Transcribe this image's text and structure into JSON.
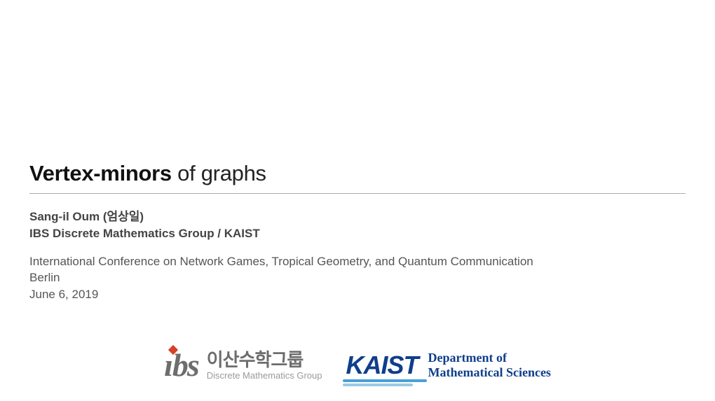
{
  "title": {
    "bold": "Vertex-minors",
    "rest": " of graphs"
  },
  "author": "Sang-il Oum (엄상일)",
  "affiliation": "IBS Discrete Mathematics Group / KAIST",
  "conference": "International Conference on Network Games, Tropical Geometry, and Quantum Communication",
  "location": "Berlin",
  "date": "June 6, 2019",
  "logos": {
    "ibs": {
      "mark_i": "ı",
      "mark_bs": "bs",
      "kr": "이산수학그룹",
      "en": "Discrete Mathematics Group",
      "mark_color": "#6d6d6d",
      "dot_color": "#d64227",
      "sub_color": "#9a9a9a"
    },
    "kaist": {
      "mark": "KAIST",
      "dept_line1": "Department of",
      "dept_line2": "Mathematical Sciences",
      "color": "#0f3e8c",
      "underline1": "#4aa0d8",
      "underline2": "#9cc9e6"
    }
  },
  "colors": {
    "text": "#333333",
    "rule": "#aaaaaa",
    "background": "#ffffff"
  }
}
